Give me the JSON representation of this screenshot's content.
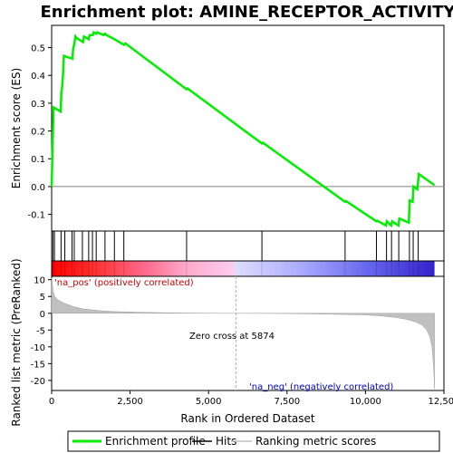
{
  "chart_data": {
    "type": "line",
    "title": "Enrichment plot: AMINE_RECEPTOR_ACTIVITY",
    "x_axis": {
      "label": "Rank in Ordered Dataset",
      "range": [
        0,
        12500
      ],
      "ticks": [
        0,
        2500,
        5000,
        7500,
        10000,
        12500
      ],
      "tick_labels": [
        "0",
        "2,500",
        "5,000",
        "7,500",
        "10,000",
        "12,500"
      ]
    },
    "es_panel": {
      "ylabel": "Enrichment score (ES)",
      "ylim": [
        -0.16,
        0.58
      ],
      "yticks": [
        -0.1,
        0.0,
        0.1,
        0.2,
        0.3,
        0.4,
        0.5
      ],
      "ytick_labels": [
        "-0.1",
        "0.0",
        "0.1",
        "0.2",
        "0.3",
        "0.4",
        "0.5"
      ],
      "zero_line": true,
      "series": [
        {
          "name": "Enrichment profile",
          "color": "#00ee00",
          "x": [
            0,
            30,
            60,
            290,
            310,
            330,
            360,
            390,
            660,
            690,
            720,
            760,
            790,
            1000,
            1030,
            1180,
            1210,
            1310,
            1340,
            1420,
            1450,
            1650,
            1700,
            1750,
            2000,
            2300,
            2350,
            4300,
            4330,
            6700,
            6730,
            9350,
            9380,
            10350,
            10380,
            10650,
            10680,
            10820,
            10850,
            11050,
            11080,
            11380,
            11410,
            11500,
            11530,
            11650,
            11700,
            12200
          ],
          "y": [
            0.0,
            0.14,
            0.285,
            0.27,
            0.34,
            0.35,
            0.4,
            0.47,
            0.46,
            0.5,
            0.51,
            0.54,
            0.535,
            0.52,
            0.54,
            0.53,
            0.545,
            0.545,
            0.555,
            0.55,
            0.555,
            0.545,
            0.55,
            0.545,
            0.53,
            0.51,
            0.515,
            0.35,
            0.353,
            0.155,
            0.158,
            -0.055,
            -0.052,
            -0.125,
            -0.123,
            -0.14,
            -0.125,
            -0.14,
            -0.125,
            -0.14,
            -0.115,
            -0.13,
            -0.05,
            -0.055,
            0.0,
            -0.01,
            0.045,
            0.005
          ]
        }
      ]
    },
    "hits_panel": {
      "hit_positions": [
        40,
        90,
        300,
        420,
        650,
        720,
        980,
        1180,
        1300,
        1420,
        1700,
        2000,
        2300,
        4300,
        6700,
        9350,
        10350,
        10670,
        10830,
        11060,
        11400,
        11520,
        11680
      ]
    },
    "metric_panel": {
      "ylabel": "Ranked list metric (PreRanked)",
      "ylim": [
        -23,
        11
      ],
      "yticks": [
        -20,
        -15,
        -10,
        -5,
        0,
        5,
        10
      ],
      "ytick_labels": [
        "-20",
        "-15",
        "-10",
        "-5",
        "0",
        "5",
        "10"
      ],
      "fill_color": "#c0c0c0",
      "x": [
        0,
        50,
        100,
        200,
        400,
        700,
        1000,
        1500,
        2000,
        3000,
        4000,
        5000,
        5874,
        7000,
        8000,
        9000,
        10000,
        10500,
        11000,
        11300,
        11600,
        11800,
        11950,
        12050,
        12120,
        12170,
        12200
      ],
      "values": [
        10.5,
        6.5,
        5.0,
        4.0,
        3.0,
        2.0,
        1.3,
        0.8,
        0.5,
        0.25,
        0.1,
        0.03,
        0.0,
        -0.05,
        -0.15,
        -0.3,
        -0.5,
        -0.8,
        -1.3,
        -1.8,
        -2.6,
        -3.5,
        -5.0,
        -7.0,
        -10.0,
        -16.0,
        -22.5
      ]
    },
    "gradient_bar": {
      "colors_pos": [
        "#ff0000",
        "#ff3333",
        "#ff6688",
        "#ffaacc",
        "#ffccee"
      ],
      "colors_neg": [
        "#ddddff",
        "#aaaaff",
        "#6666ee",
        "#3322cc"
      ]
    },
    "annotations": {
      "pos_label": "'na_pos' (positively correlated)",
      "neg_label": "'na_neg' (negatively correlated)",
      "zero_cross": "Zero cross at 5874",
      "zero_cross_value": 5874
    },
    "legend": {
      "items": [
        {
          "label": "Enrichment profile",
          "color": "#00ee00",
          "kind": "line"
        },
        {
          "label": "Hits",
          "color": "#000000",
          "kind": "line"
        },
        {
          "label": "Ranking metric scores",
          "color": "#c0c0c0",
          "kind": "line"
        }
      ]
    }
  }
}
